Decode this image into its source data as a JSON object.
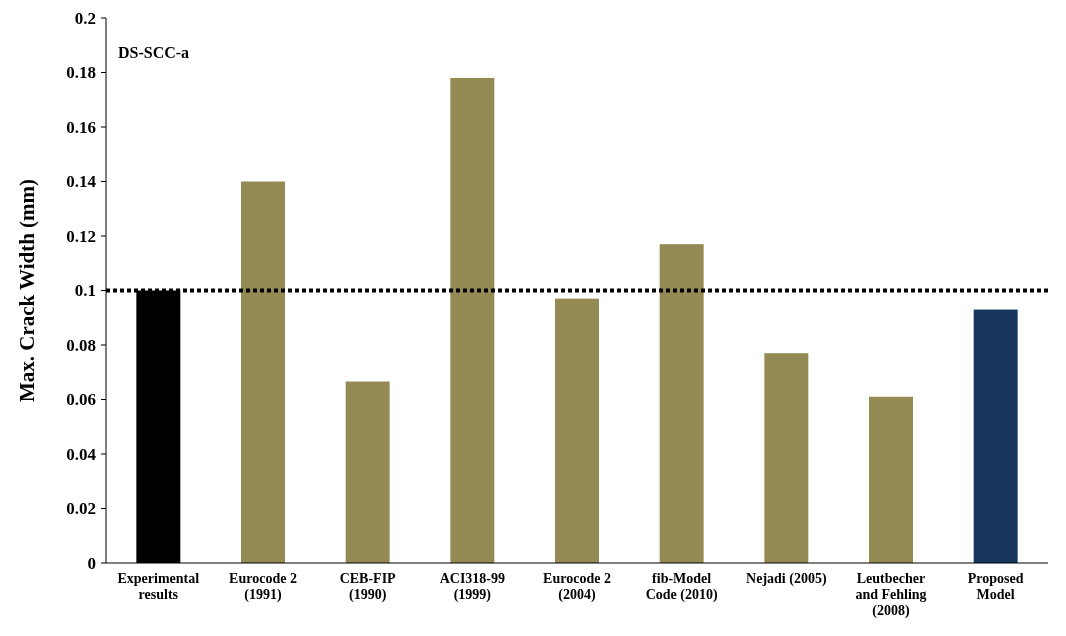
{
  "chart_data": {
    "type": "bar",
    "ylabel": "Max. Crack Width (mm)",
    "categories": [
      "Experimental\nresults",
      "Eurocode 2\n(1991)",
      "CEB-FIP\n(1990)",
      "ACI318-99\n(1999)",
      "Eurocode 2\n(2004)",
      "fib-Model\nCode (2010)",
      "Nejadi (2005)",
      "Leutbecher\nand Fehling\n(2008)",
      "Proposed\nModel"
    ],
    "values": [
      0.1,
      0.14,
      0.0666,
      0.178,
      0.097,
      0.117,
      0.077,
      0.061,
      0.093
    ],
    "colors": [
      "#000000",
      "#948a54",
      "#948a54",
      "#948a54",
      "#948a54",
      "#948a54",
      "#948a54",
      "#948a54",
      "#17375e"
    ],
    "ylim": [
      0,
      0.2
    ],
    "yticks": [
      0,
      0.02,
      0.04,
      0.06,
      0.08,
      0.1,
      0.12,
      0.14,
      0.16,
      0.18,
      0.2
    ],
    "ref_lines": [
      {
        "axis": "y",
        "value": 0.1,
        "line_style": "dotted",
        "color": "#000000"
      }
    ],
    "annotations": [
      "DS-SCC-a"
    ]
  }
}
